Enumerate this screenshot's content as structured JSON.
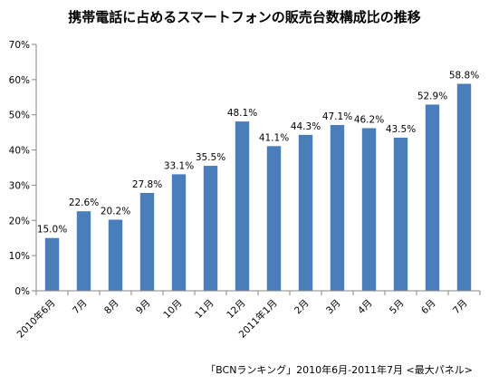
{
  "chart_data": {
    "type": "bar",
    "title": "携帯電話に占めるスマートフォンの販売台数構成比の推移",
    "categories": [
      "2010年6月",
      "7月",
      "8月",
      "9月",
      "10月",
      "11月",
      "12月",
      "2011年1月",
      "2月",
      "3月",
      "4月",
      "5月",
      "6月",
      "7月"
    ],
    "values": [
      15.0,
      22.6,
      20.2,
      27.8,
      33.1,
      35.5,
      48.1,
      41.1,
      44.3,
      47.1,
      46.2,
      43.5,
      52.9,
      58.8
    ],
    "value_labels": [
      "15.0%",
      "22.6%",
      "20.2%",
      "27.8%",
      "33.1%",
      "35.5%",
      "48.1%",
      "41.1%",
      "44.3%",
      "47.1%",
      "46.2%",
      "43.5%",
      "52.9%",
      "58.8%"
    ],
    "y_ticks": [
      "0%",
      "10%",
      "20%",
      "30%",
      "40%",
      "50%",
      "60%",
      "70%"
    ],
    "ylim": [
      0,
      70
    ],
    "xlabel": "",
    "ylabel": "",
    "grid": false,
    "legend": "none",
    "bar_color": "#4a7ebb",
    "source_note": "「BCNランキング」2010年6月-2011年7月 <最大パネル>"
  }
}
